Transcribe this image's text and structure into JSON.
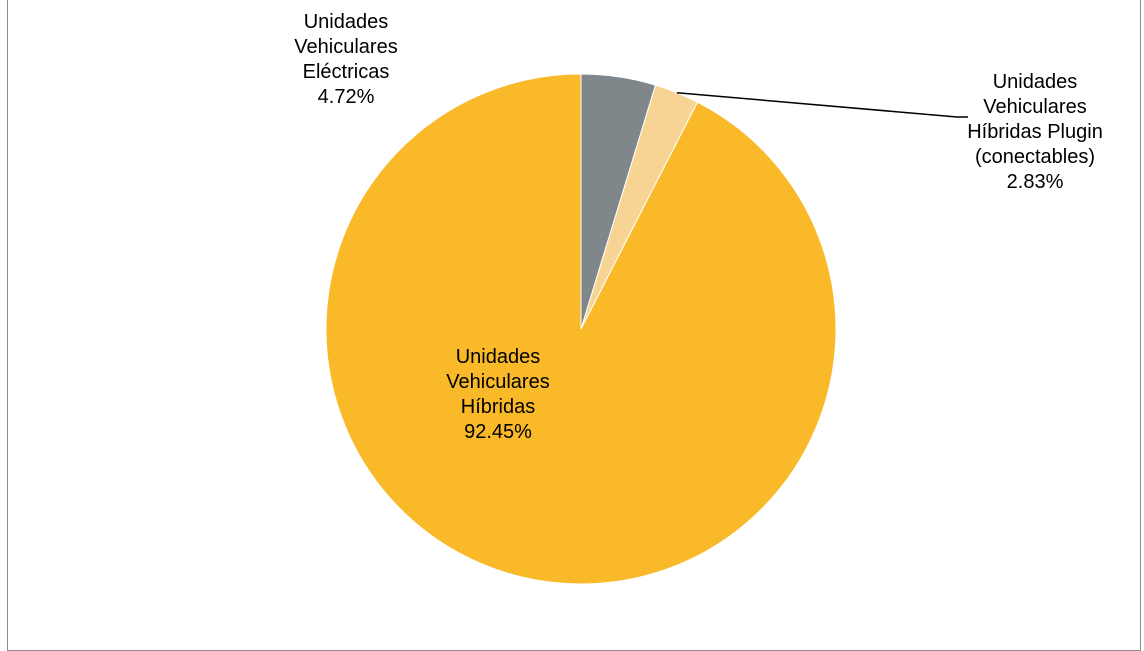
{
  "chart_data": {
    "type": "pie",
    "title": "",
    "start_angle_deg": 0,
    "direction": "clockwise",
    "slices": [
      {
        "name_lines": [
          "Unidades",
          "Vehiculares",
          "Eléctricas"
        ],
        "value": 4.72,
        "value_label": "4.72%",
        "color": "#7f878b"
      },
      {
        "name_lines": [
          "Unidades",
          "Vehiculares",
          "Híbridas Plugin",
          "(conectables)"
        ],
        "value": 2.83,
        "value_label": "2.83%",
        "color": "#f8d494"
      },
      {
        "name_lines": [
          "Unidades",
          "Vehiculares",
          "Híbridas"
        ],
        "value": 92.45,
        "value_label": "92.45%",
        "color": "#f9b929"
      }
    ]
  }
}
